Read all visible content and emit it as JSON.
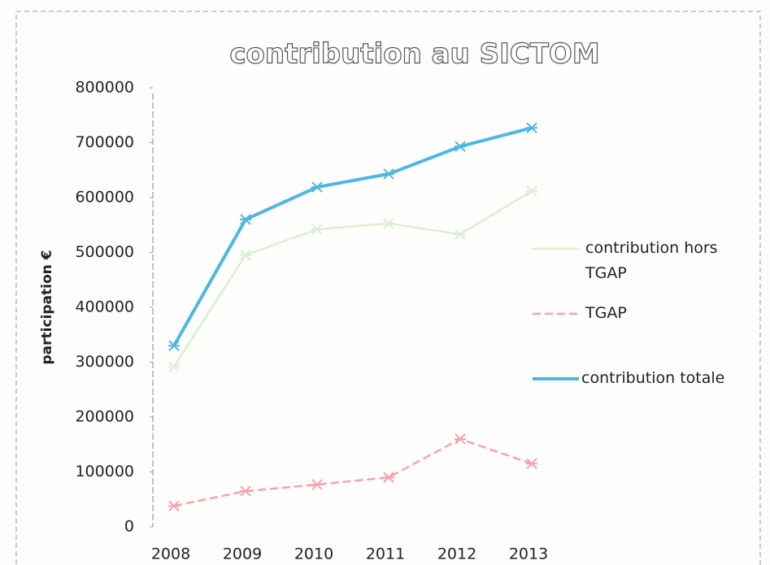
{
  "chart_data": {
    "type": "line",
    "title": "contribution au SICTOM",
    "y_label": "participation €",
    "categories": [
      "2008",
      "2009",
      "2010",
      "2011",
      "2012",
      "2013"
    ],
    "series": [
      {
        "name": "contribution hors TGAP",
        "color": "#d9efd2",
        "values": [
          292000,
          495000,
          542000,
          553000,
          533000,
          612000
        ]
      },
      {
        "name": "TGAP",
        "color": "#f3a3b0",
        "values": [
          38000,
          65000,
          77000,
          90000,
          160000,
          115000
        ]
      },
      {
        "name": "contribution totale",
        "color": "#4db7e2",
        "values": [
          330000,
          560000,
          619000,
          643000,
          693000,
          727000
        ]
      }
    ],
    "ylim": [
      0,
      800000
    ],
    "yticks": [
      0,
      100000,
      200000,
      300000,
      400000,
      500000,
      600000,
      700000,
      800000
    ],
    "grid": false,
    "legend": "right"
  }
}
